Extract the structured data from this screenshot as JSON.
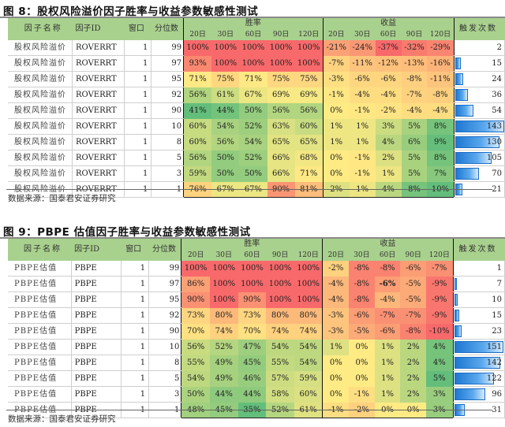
{
  "figure8": {
    "title": "图 8：股权风险溢价因子胜率与收益参数敏感性测试",
    "headers": {
      "name": "因子名称",
      "id": "因子ID",
      "window": "窗口",
      "quantile": "分位数",
      "winrate": "胜率",
      "return": "收益",
      "count": "触发次数",
      "periods": [
        "20日",
        "30日",
        "60日",
        "90日",
        "120日"
      ]
    },
    "rows": [
      {
        "name": "股权风险溢价",
        "id": "ROVERRT",
        "window": "1",
        "quantile": "99",
        "winrate": [
          "100%",
          "100%",
          "100%",
          "100%",
          "100%"
        ],
        "return": [
          "-21%",
          "-24%",
          "-37%",
          "-32%",
          "-29%"
        ],
        "count": "2"
      },
      {
        "name": "股权风险溢价",
        "id": "ROVERRT",
        "window": "1",
        "quantile": "97",
        "winrate": [
          "93%",
          "100%",
          "100%",
          "100%",
          "100%"
        ],
        "return": [
          "-7%",
          "-11%",
          "-12%",
          "-13%",
          "-16%"
        ],
        "count": "15"
      },
      {
        "name": "股权风险溢价",
        "id": "ROVERRT",
        "window": "1",
        "quantile": "95",
        "winrate": [
          "71%",
          "75%",
          "71%",
          "75%",
          "75%"
        ],
        "return": [
          "-3%",
          "-6%",
          "-6%",
          "-8%",
          "-11%"
        ],
        "count": "24"
      },
      {
        "name": "股权风险溢价",
        "id": "ROVERRT",
        "window": "1",
        "quantile": "92",
        "winrate": [
          "56%",
          "61%",
          "67%",
          "69%",
          "69%"
        ],
        "return": [
          "-1%",
          "-4%",
          "-4%",
          "-7%",
          "-8%"
        ],
        "count": "36"
      },
      {
        "name": "股权风险溢价",
        "id": "ROVERRT",
        "window": "1",
        "quantile": "90",
        "winrate": [
          "41%",
          "44%",
          "50%",
          "56%",
          "56%"
        ],
        "return": [
          "0%",
          "-1%",
          "-2%",
          "-4%",
          "-4%"
        ],
        "count": "54"
      },
      {
        "name": "股权风险溢价",
        "id": "ROVERRT",
        "window": "1",
        "quantile": "10",
        "winrate": [
          "60%",
          "54%",
          "52%",
          "63%",
          "60%"
        ],
        "return": [
          "1%",
          "1%",
          "3%",
          "5%",
          "8%"
        ],
        "count": "143"
      },
      {
        "name": "股权风险溢价",
        "id": "ROVERRT",
        "window": "1",
        "quantile": "8",
        "winrate": [
          "60%",
          "56%",
          "54%",
          "65%",
          "65%"
        ],
        "return": [
          "1%",
          "1%",
          "4%",
          "6%",
          "9%"
        ],
        "count": "130"
      },
      {
        "name": "股权风险溢价",
        "id": "ROVERRT",
        "window": "1",
        "quantile": "5",
        "winrate": [
          "56%",
          "50%",
          "52%",
          "66%",
          "68%"
        ],
        "return": [
          "0%",
          "-1%",
          "2%",
          "5%",
          "8%"
        ],
        "count": "105"
      },
      {
        "name": "股权风险溢价",
        "id": "ROVERRT",
        "window": "1",
        "quantile": "3",
        "winrate": [
          "59%",
          "50%",
          "50%",
          "66%",
          "71%"
        ],
        "return": [
          "0%",
          "-1%",
          "1%",
          "5%",
          "7%"
        ],
        "count": "70"
      },
      {
        "name": "股权风险溢价",
        "id": "ROVERRT",
        "window": "1",
        "quantile": "1",
        "winrate": [
          "76%",
          "67%",
          "67%",
          "90%",
          "81%"
        ],
        "return": [
          "2%",
          "1%",
          "4%",
          "8%",
          "10%"
        ],
        "count": "21"
      }
    ],
    "source": "数据来源：国泰君安证券研究"
  },
  "figure9": {
    "title": "图 9：PBPE 估值因子胜率与收益参数敏感性测试",
    "headers": {
      "name": "因子名称",
      "id": "因子ID",
      "window": "窗口",
      "quantile": "分位数",
      "winrate": "胜率",
      "return": "收益",
      "count": "触发次数",
      "periods": [
        "20日",
        "30日",
        "60日",
        "90日",
        "120日"
      ]
    },
    "rows": [
      {
        "name": "PBPE估值",
        "id": "PBPE",
        "window": "1",
        "quantile": "99",
        "winrate": [
          "100%",
          "100%",
          "100%",
          "100%",
          "100%"
        ],
        "return": [
          "-2%",
          "-8%",
          "-8%",
          "-6%",
          "-7%"
        ],
        "count": "1"
      },
      {
        "name": "PBPE估值",
        "id": "PBPE",
        "window": "1",
        "quantile": "97",
        "winrate": [
          "86%",
          "100%",
          "100%",
          "100%",
          "100%"
        ],
        "return": [
          "-4%",
          "-8%",
          "-6%",
          "-5%",
          "-9%"
        ],
        "count": "7"
      },
      {
        "name": "PBPE估值",
        "id": "PBPE",
        "window": "1",
        "quantile": "95",
        "winrate": [
          "90%",
          "100%",
          "90%",
          "100%",
          "100%"
        ],
        "return": [
          "-4%",
          "-8%",
          "-4%",
          "-5%",
          "-9%"
        ],
        "count": "10"
      },
      {
        "name": "PBPE估值",
        "id": "PBPE",
        "window": "1",
        "quantile": "92",
        "winrate": [
          "73%",
          "80%",
          "73%",
          "80%",
          "80%"
        ],
        "return": [
          "-3%",
          "-6%",
          "-7%",
          "-7%",
          "-9%"
        ],
        "count": "15"
      },
      {
        "name": "PBPE估值",
        "id": "PBPE",
        "window": "1",
        "quantile": "90",
        "winrate": [
          "70%",
          "74%",
          "70%",
          "74%",
          "74%"
        ],
        "return": [
          "-3%",
          "-5%",
          "-6%",
          "-8%",
          "-10%"
        ],
        "count": "23"
      },
      {
        "name": "PBPE估值",
        "id": "PBPE",
        "window": "1",
        "quantile": "10",
        "winrate": [
          "56%",
          "52%",
          "47%",
          "54%",
          "54%"
        ],
        "return": [
          "1%",
          "0%",
          "1%",
          "2%",
          "4%"
        ],
        "count": "151"
      },
      {
        "name": "PBPE估值",
        "id": "PBPE",
        "window": "1",
        "quantile": "8",
        "winrate": [
          "55%",
          "49%",
          "45%",
          "55%",
          "54%"
        ],
        "return": [
          "0%",
          "0%",
          "1%",
          "2%",
          "4%"
        ],
        "count": "142"
      },
      {
        "name": "PBPE估值",
        "id": "PBPE",
        "window": "1",
        "quantile": "5",
        "winrate": [
          "54%",
          "49%",
          "46%",
          "57%",
          "59%"
        ],
        "return": [
          "0%",
          "0%",
          "1%",
          "2%",
          "5%"
        ],
        "count": "122"
      },
      {
        "name": "PBPE估值",
        "id": "PBPE",
        "window": "1",
        "quantile": "3",
        "winrate": [
          "50%",
          "44%",
          "44%",
          "58%",
          "60%"
        ],
        "return": [
          "0%",
          "-1%",
          "1%",
          "2%",
          "3%"
        ],
        "count": "96"
      },
      {
        "name": "PBPE估值",
        "id": "PBPE",
        "window": "1",
        "quantile": "1",
        "winrate": [
          "48%",
          "45%",
          "35%",
          "52%",
          "61%"
        ],
        "return": [
          "-1%",
          "-2%",
          "0%",
          "0%",
          "3%"
        ],
        "count": "31"
      }
    ],
    "source": "数据来源：国泰君安证券研究"
  },
  "colors": {
    "header_bg": "#a9d18e",
    "heat_red": "#f8696b",
    "heat_yellow": "#ffeb84",
    "heat_green": "#63be7b",
    "bar_blue": "#1f77d0"
  }
}
